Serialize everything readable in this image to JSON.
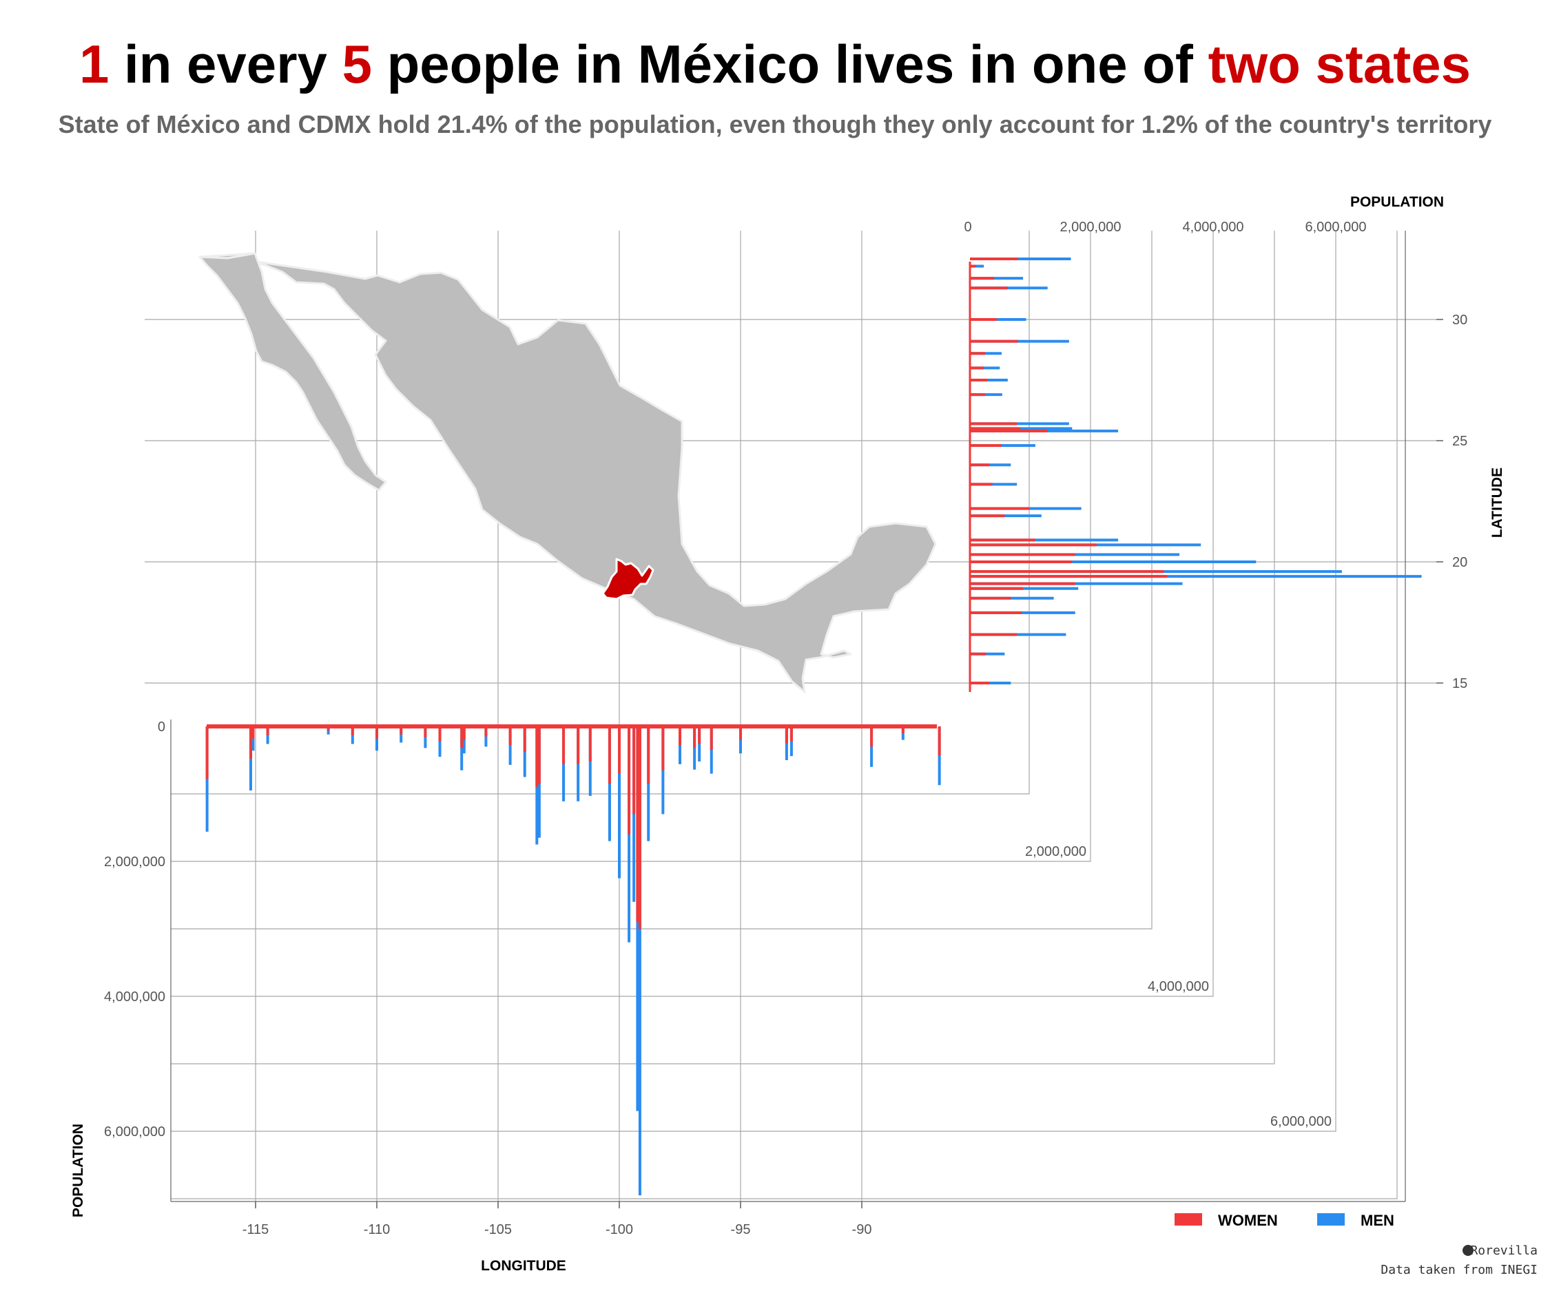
{
  "title": {
    "p1": "1",
    "p2": " in every ",
    "p3": "5",
    "p4": " people in México lives in one of  ",
    "p5": "two states"
  },
  "subtitle": "State of México and CDMX hold 21.4% of the population, even though they only account for 1.2% of the country's territory",
  "colors": {
    "women": "#f03a3a",
    "men": "#2a8cf0",
    "highlight": "#cc0000",
    "map": "#bdbdbd",
    "grid": "#999999"
  },
  "chart_data": {
    "type": "bar",
    "map": {
      "highlighted_states": [
        "State of México",
        "CDMX"
      ]
    },
    "longitude_axis": {
      "label": "LONGITUDE",
      "ticks": [
        "-115",
        "-110",
        "-105",
        "-100",
        "-95",
        "-90"
      ],
      "range": [
        -118.5,
        -79.5
      ]
    },
    "latitude_axis": {
      "label": "LATITUDE",
      "ticks": [
        "15",
        "20",
        "25",
        "30"
      ],
      "range": [
        14.5,
        32.9
      ]
    },
    "population_by_longitude": {
      "axis_label": "POPULATION",
      "ticks": [
        "0",
        "2,000,000",
        "4,000,000",
        "6,000,000"
      ],
      "range": [
        0,
        7000000
      ],
      "series": [
        {
          "name": "WOMEN",
          "points": [
            [
              -117.0,
              780000
            ],
            [
              -115.2,
              480000
            ],
            [
              -115.1,
              180000
            ],
            [
              -114.5,
              130000
            ],
            [
              -112.0,
              60000
            ],
            [
              -111.0,
              130000
            ],
            [
              -110.0,
              180000
            ],
            [
              -109.0,
              120000
            ],
            [
              -108.0,
              160000
            ],
            [
              -107.4,
              220000
            ],
            [
              -106.5,
              320000
            ],
            [
              -106.4,
              200000
            ],
            [
              -105.5,
              150000
            ],
            [
              -104.5,
              280000
            ],
            [
              -103.9,
              380000
            ],
            [
              -103.4,
              900000
            ],
            [
              -103.3,
              850000
            ],
            [
              -102.3,
              560000
            ],
            [
              -101.7,
              560000
            ],
            [
              -101.2,
              520000
            ],
            [
              -100.4,
              850000
            ],
            [
              -100.0,
              700000
            ],
            [
              -99.6,
              1600000
            ],
            [
              -99.4,
              1300000
            ],
            [
              -99.25,
              2900000
            ],
            [
              -99.15,
              3000000
            ],
            [
              -98.8,
              850000
            ],
            [
              -98.2,
              650000
            ],
            [
              -97.5,
              280000
            ],
            [
              -96.9,
              320000
            ],
            [
              -96.7,
              260000
            ],
            [
              -96.2,
              350000
            ],
            [
              -95.0,
              200000
            ],
            [
              -93.1,
              250000
            ],
            [
              -92.9,
              220000
            ],
            [
              -89.6,
              300000
            ],
            [
              -88.3,
              100000
            ],
            [
              -86.8,
              430000
            ]
          ]
        },
        {
          "name": "MEN",
          "points": [
            [
              -117.0,
              1560000
            ],
            [
              -115.2,
              950000
            ],
            [
              -115.1,
              360000
            ],
            [
              -114.5,
              260000
            ],
            [
              -112.0,
              120000
            ],
            [
              -111.0,
              260000
            ],
            [
              -110.0,
              360000
            ],
            [
              -109.0,
              240000
            ],
            [
              -108.0,
              320000
            ],
            [
              -107.4,
              450000
            ],
            [
              -106.5,
              650000
            ],
            [
              -106.4,
              400000
            ],
            [
              -105.5,
              300000
            ],
            [
              -104.5,
              570000
            ],
            [
              -103.9,
              750000
            ],
            [
              -103.4,
              1750000
            ],
            [
              -103.3,
              1650000
            ],
            [
              -102.3,
              1110000
            ],
            [
              -101.7,
              1110000
            ],
            [
              -101.2,
              1030000
            ],
            [
              -100.4,
              1700000
            ],
            [
              -100.0,
              2250000
            ],
            [
              -99.6,
              3200000
            ],
            [
              -99.4,
              2600000
            ],
            [
              -99.25,
              5700000
            ],
            [
              -99.15,
              6950000
            ],
            [
              -98.8,
              1700000
            ],
            [
              -98.2,
              1300000
            ],
            [
              -97.5,
              560000
            ],
            [
              -96.9,
              640000
            ],
            [
              -96.7,
              520000
            ],
            [
              -96.2,
              700000
            ],
            [
              -95.0,
              400000
            ],
            [
              -93.1,
              500000
            ],
            [
              -92.9,
              440000
            ],
            [
              -89.6,
              600000
            ],
            [
              -88.3,
              200000
            ],
            [
              -86.8,
              870000
            ]
          ]
        }
      ]
    },
    "population_by_latitude": {
      "axis_label": "POPULATION",
      "ticks": [
        "0",
        "2,000,000",
        "4,000,000",
        "6,000,000"
      ],
      "range": [
        0,
        7400000
      ],
      "series": [
        {
          "name": "WOMEN",
          "points": [
            [
              32.5,
              820000
            ],
            [
              32.2,
              130000
            ],
            [
              31.7,
              430000
            ],
            [
              31.3,
              650000
            ],
            [
              30.0,
              470000
            ],
            [
              29.1,
              820000
            ],
            [
              28.6,
              280000
            ],
            [
              28.0,
              260000
            ],
            [
              27.5,
              320000
            ],
            [
              26.9,
              280000
            ],
            [
              25.7,
              800000
            ],
            [
              25.5,
              850000
            ],
            [
              25.4,
              1300000
            ],
            [
              24.8,
              550000
            ],
            [
              24.0,
              350000
            ],
            [
              23.2,
              400000
            ],
            [
              22.2,
              1000000
            ],
            [
              21.9,
              600000
            ],
            [
              20.9,
              1100000
            ],
            [
              20.7,
              2100000
            ],
            [
              20.3,
              1750000
            ],
            [
              20.0,
              1700000
            ],
            [
              19.6,
              3200000
            ],
            [
              19.4,
              3250000
            ],
            [
              19.1,
              1750000
            ],
            [
              18.9,
              900000
            ],
            [
              18.5,
              700000
            ],
            [
              17.9,
              880000
            ],
            [
              17.0,
              800000
            ],
            [
              16.2,
              300000
            ],
            [
              15.0,
              350000
            ]
          ]
        },
        {
          "name": "MEN",
          "points": [
            [
              32.5,
              1680000
            ],
            [
              32.2,
              260000
            ],
            [
              31.7,
              900000
            ],
            [
              31.3,
              1300000
            ],
            [
              30.0,
              950000
            ],
            [
              29.1,
              1650000
            ],
            [
              28.6,
              550000
            ],
            [
              28.0,
              520000
            ],
            [
              27.5,
              650000
            ],
            [
              26.9,
              560000
            ],
            [
              25.7,
              1650000
            ],
            [
              25.5,
              1700000
            ],
            [
              25.4,
              2450000
            ],
            [
              24.8,
              1100000
            ],
            [
              24.0,
              700000
            ],
            [
              23.2,
              800000
            ],
            [
              22.2,
              1850000
            ],
            [
              21.9,
              1200000
            ],
            [
              20.9,
              2450000
            ],
            [
              20.7,
              3800000
            ],
            [
              20.3,
              3450000
            ],
            [
              20.0,
              4700000
            ],
            [
              19.6,
              6100000
            ],
            [
              19.4,
              7400000
            ],
            [
              19.1,
              3500000
            ],
            [
              18.9,
              1800000
            ],
            [
              18.5,
              1400000
            ],
            [
              17.9,
              1750000
            ],
            [
              17.0,
              1600000
            ],
            [
              16.2,
              600000
            ],
            [
              15.0,
              700000
            ]
          ]
        }
      ]
    },
    "legend": {
      "women": "WOMEN",
      "men": "MEN",
      "placement": "bottom-right"
    }
  },
  "credit": {
    "author": "Rorevilla",
    "source": "Data taken from INEGI"
  }
}
